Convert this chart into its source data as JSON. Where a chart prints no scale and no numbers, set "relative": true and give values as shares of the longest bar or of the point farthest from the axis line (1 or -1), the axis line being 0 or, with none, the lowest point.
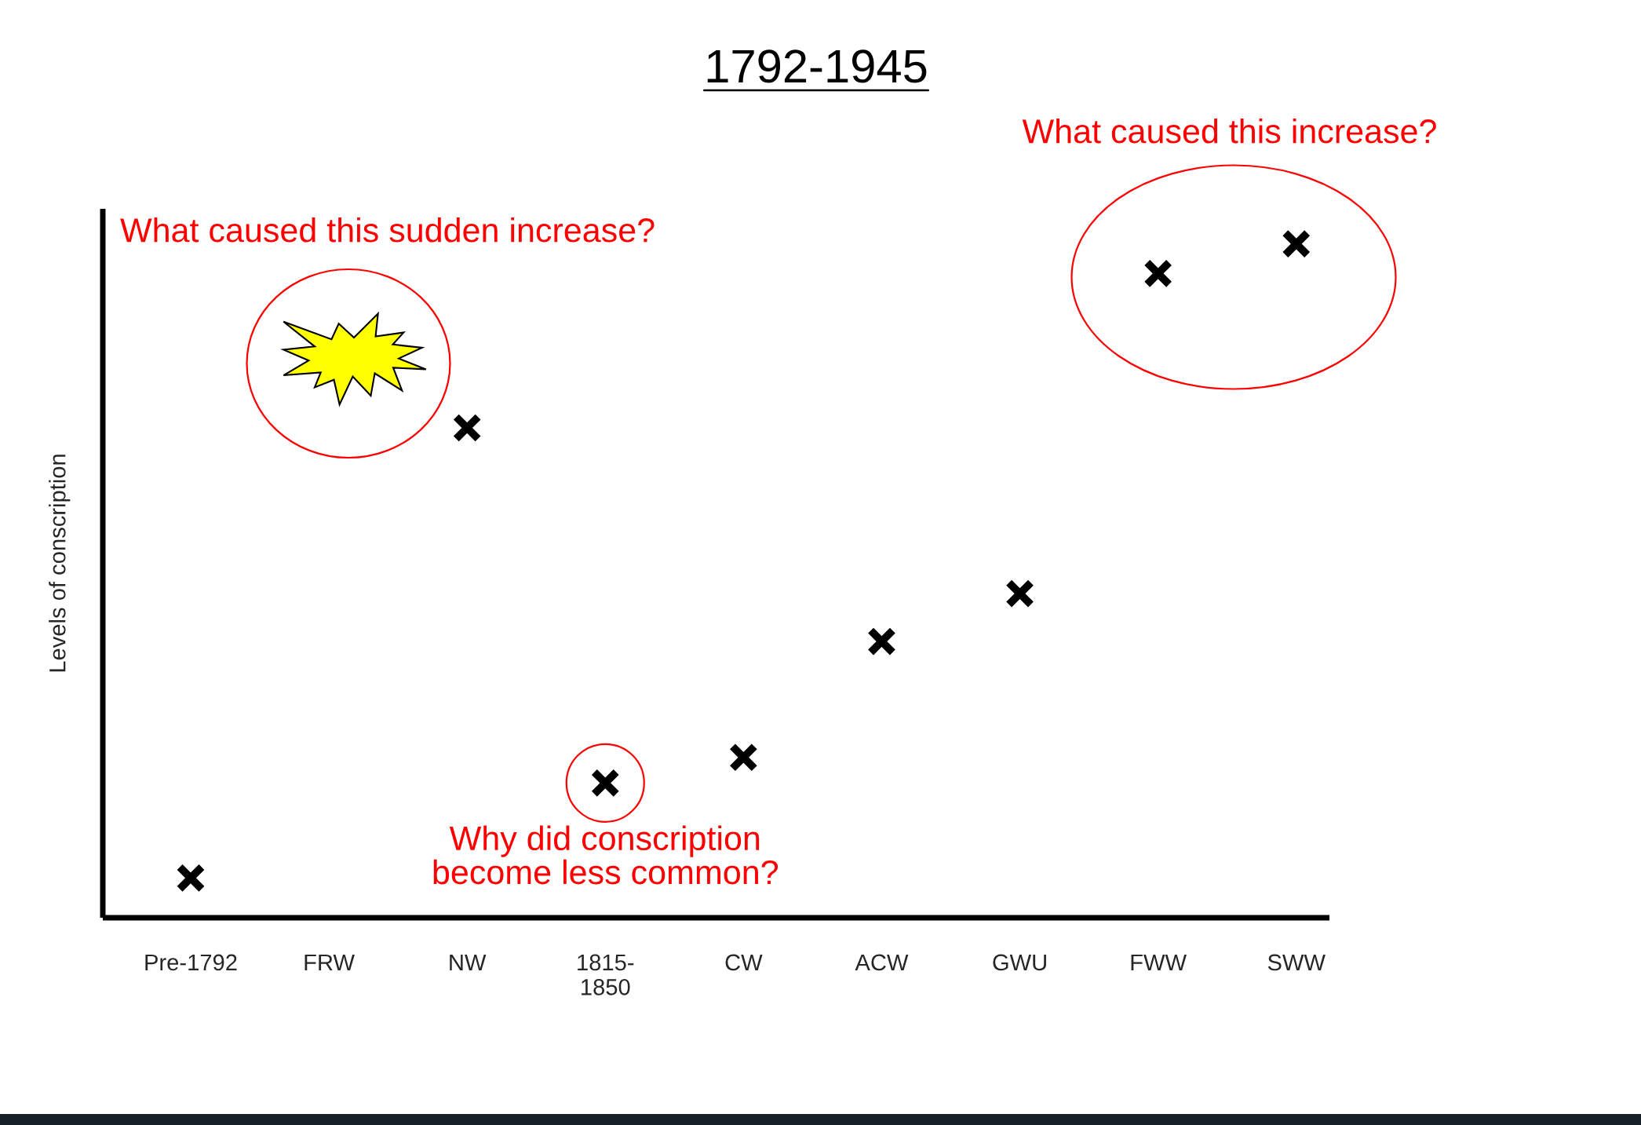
{
  "chart_data": {
    "type": "scatter",
    "title": "1792-1945",
    "ylabel": "Levels of conscription",
    "categories": [
      "Pre-1792",
      "FRW",
      "NW",
      "1815-\n1850",
      "CW",
      "ACW",
      "GWU",
      "FWW",
      "SWW"
    ],
    "values": [
      0.059,
      null,
      0.727,
      0.2,
      0.238,
      0.41,
      0.481,
      0.956,
      1
    ],
    "color": "#000000",
    "marker": "cross",
    "relative": true,
    "annotations": [
      "What caused this sudden increase?",
      "What caused this increase?",
      {
        "text": "Why did conscription\nbecome less common?",
        "x": "1815-\n1850",
        "y": 0.2
      }
    ]
  }
}
